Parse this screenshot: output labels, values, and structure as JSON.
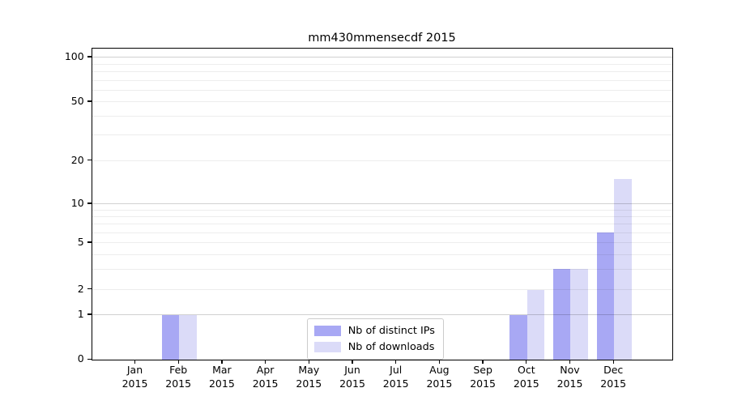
{
  "figure": {
    "background": "#ffffff"
  },
  "chart_data": {
    "type": "bar",
    "title": "mm430mmensecdf 2015",
    "x_categories": [
      "Jan",
      "Feb",
      "Mar",
      "Apr",
      "May",
      "Jun",
      "Jul",
      "Aug",
      "Sep",
      "Oct",
      "Nov",
      "Dec"
    ],
    "x_sublabel": "2015",
    "series": [
      {
        "name": "Nb of distinct IPs",
        "color": "#a8a8f4",
        "values": [
          0,
          1,
          0,
          0,
          0,
          0,
          0,
          0,
          0,
          1,
          3,
          6
        ]
      },
      {
        "name": "Nb of downloads",
        "color": "#dbdbf8",
        "values": [
          0,
          1,
          0,
          0,
          0,
          0,
          0,
          0,
          0,
          2,
          3,
          15
        ]
      }
    ],
    "y_axis": {
      "scale": "symlog",
      "tick_values": [
        0,
        1,
        2,
        5,
        10,
        20,
        50,
        100
      ],
      "tick_labels": [
        "0",
        "1",
        "2",
        "5",
        "10",
        "20",
        "50",
        "100"
      ],
      "major_gridlines": [
        1,
        10,
        100
      ],
      "minor_gridlines": [
        2,
        3,
        4,
        5,
        6,
        7,
        8,
        9,
        20,
        30,
        40,
        50,
        60,
        70,
        80,
        90
      ],
      "ylim": [
        0,
        115
      ]
    },
    "legend": {
      "position": "lower center",
      "entries": [
        "Nb of distinct IPs",
        "Nb of downloads"
      ]
    },
    "grid": "on"
  }
}
